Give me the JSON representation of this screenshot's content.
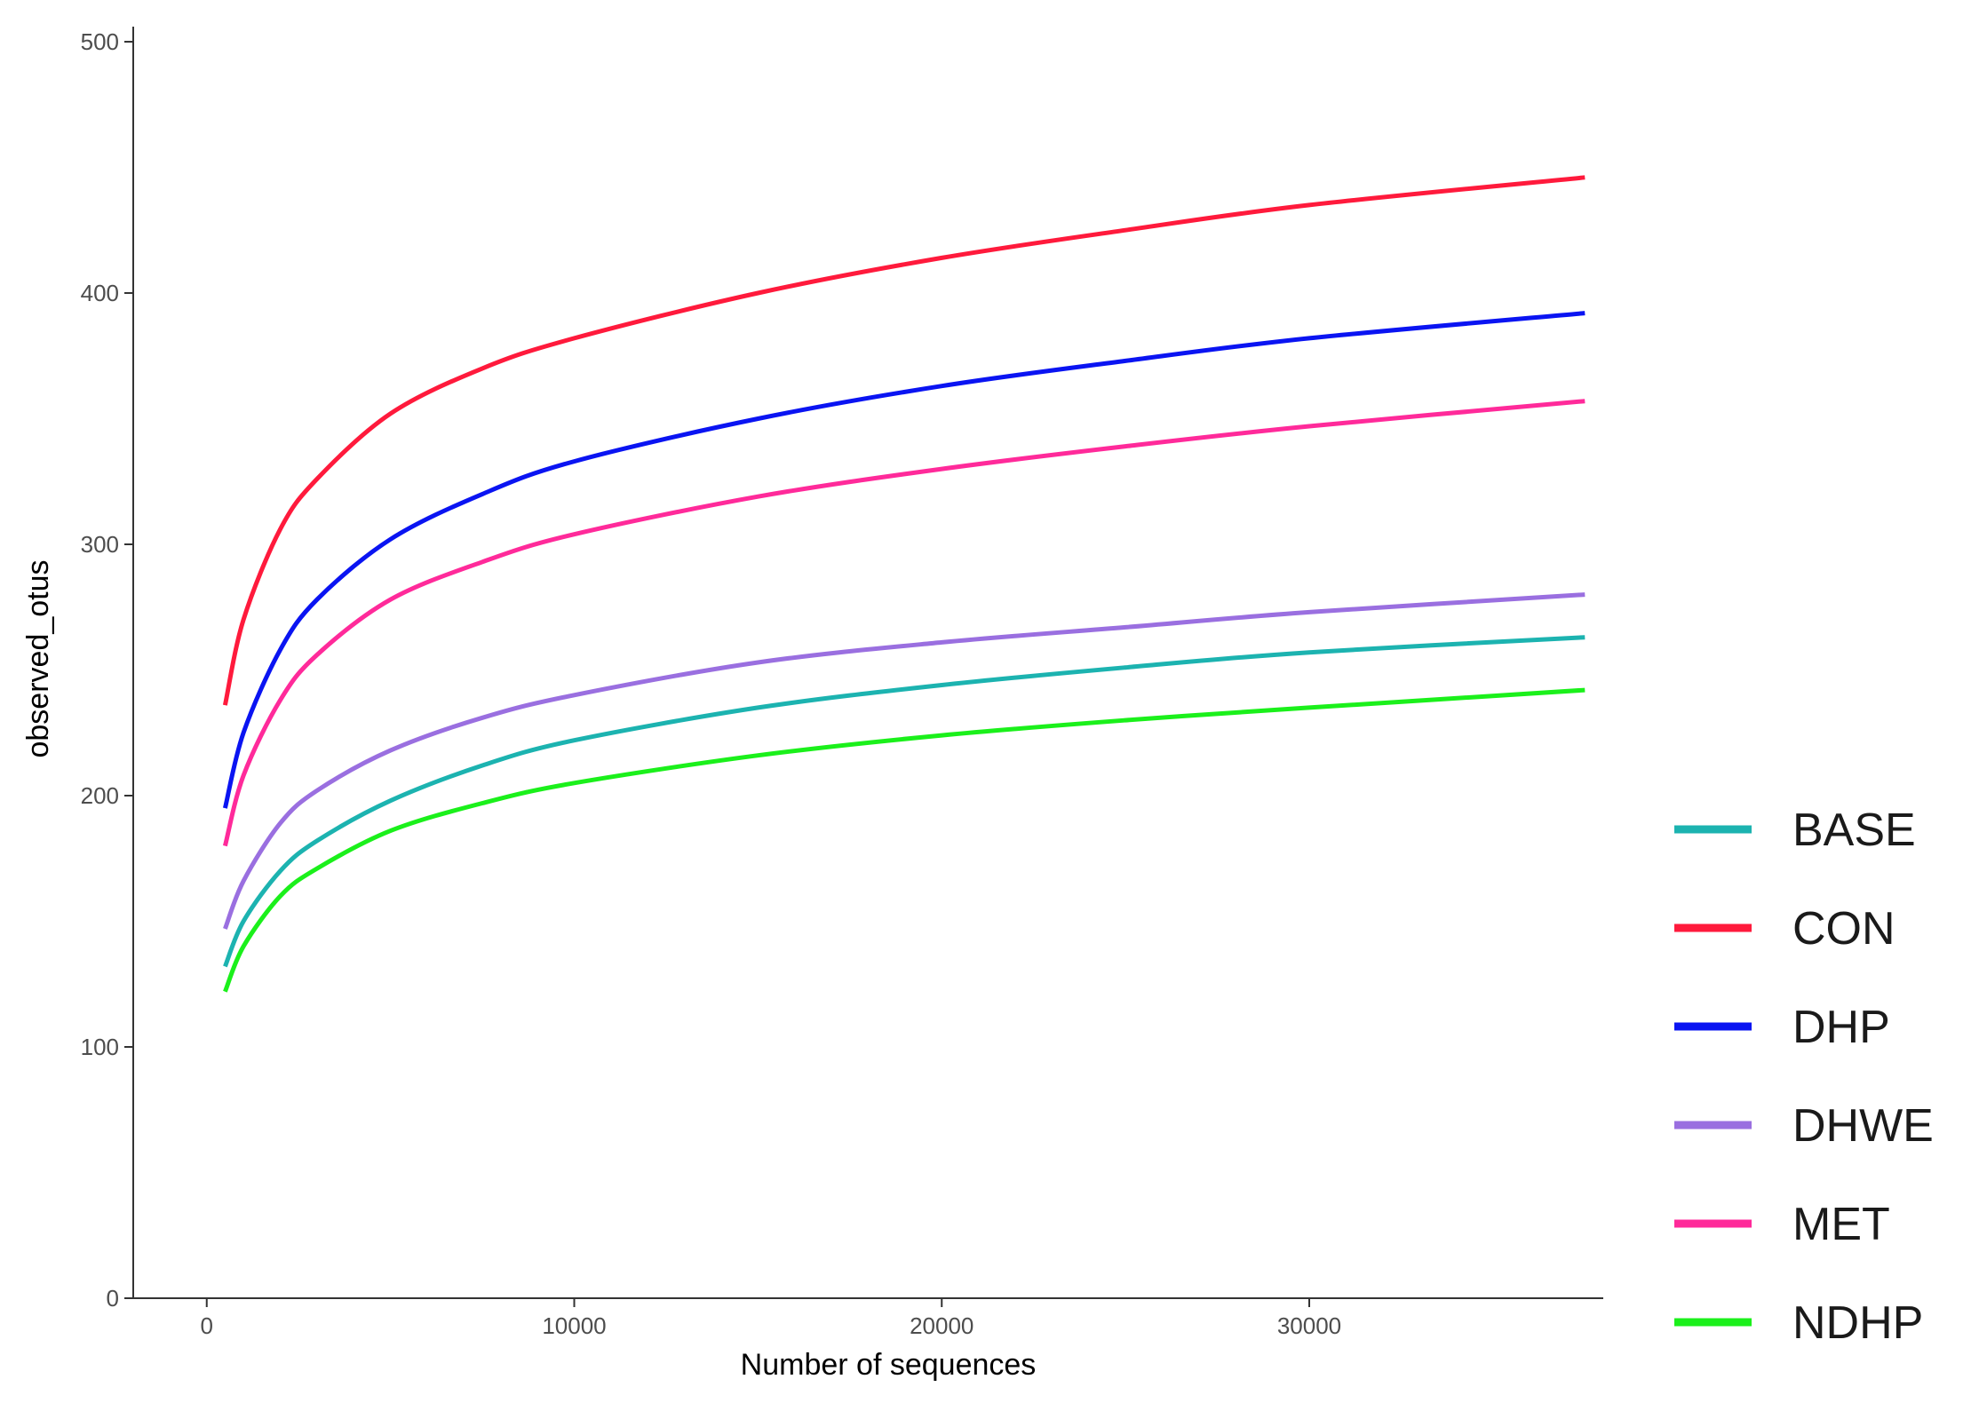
{
  "chart_data": {
    "type": "line",
    "xlabel": "Number of sequences",
    "ylabel": "observed_otus",
    "xlim": [
      -2000,
      38000
    ],
    "ylim": [
      0,
      506
    ],
    "x_ticks": [
      0,
      10000,
      20000,
      30000
    ],
    "x_tick_labels": [
      "0",
      "10000",
      "20000",
      "30000"
    ],
    "y_ticks": [
      0,
      100,
      200,
      300,
      400,
      500
    ],
    "y_tick_labels": [
      "0",
      "100",
      "200",
      "300",
      "400",
      "500"
    ],
    "grid": false,
    "legend_position": "right",
    "x": [
      500,
      1000,
      2000,
      3000,
      5000,
      7500,
      10000,
      15000,
      20000,
      25000,
      30000,
      37500
    ],
    "series": [
      {
        "name": "BASE",
        "color": "#1CB3B0",
        "values": [
          132,
          150,
          170,
          182,
          198,
          212,
          222,
          235,
          244,
          251,
          257,
          263
        ]
      },
      {
        "name": "CON",
        "color": "#FF1A3C",
        "values": [
          236,
          270,
          306,
          326,
          352,
          370,
          382,
          400,
          414,
          425,
          435,
          446
        ]
      },
      {
        "name": "DHP",
        "color": "#0A14F2",
        "values": [
          195,
          225,
          258,
          278,
          302,
          320,
          333,
          350,
          363,
          373,
          382,
          392
        ]
      },
      {
        "name": "DHWE",
        "color": "#9A6FE0",
        "values": [
          147,
          166,
          189,
          202,
          218,
          231,
          240,
          253,
          261,
          267,
          273,
          280
        ]
      },
      {
        "name": "MET",
        "color": "#FF2A9A",
        "values": [
          180,
          208,
          238,
          256,
          278,
          293,
          304,
          319,
          330,
          339,
          347,
          357
        ]
      },
      {
        "name": "NDHP",
        "color": "#1BF01B",
        "values": [
          122,
          140,
          160,
          171,
          186,
          197,
          205,
          216,
          224,
          230,
          235,
          242
        ]
      }
    ]
  }
}
